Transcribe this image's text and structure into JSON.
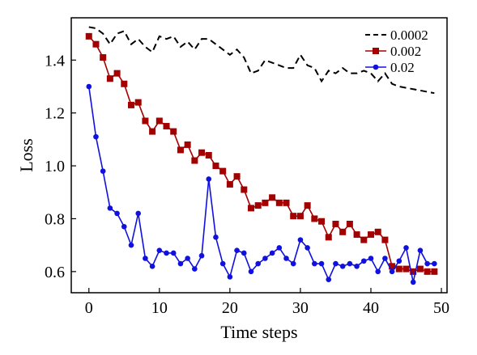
{
  "chart_data": {
    "type": "line",
    "title": "",
    "xlabel": "Time steps",
    "ylabel": "Loss",
    "xlim": [
      -2.5,
      50.8
    ],
    "ylim": [
      0.52,
      1.56
    ],
    "xticks": [
      "0",
      "10",
      "20",
      "30",
      "40",
      "50"
    ],
    "yticks": [
      "0.6",
      "0.8",
      "1.0",
      "1.2",
      "1.4"
    ],
    "legend_position": "top-right",
    "grid": false,
    "x": [
      0,
      1,
      2,
      3,
      4,
      5,
      6,
      7,
      8,
      9,
      10,
      11,
      12,
      13,
      14,
      15,
      16,
      17,
      18,
      19,
      20,
      21,
      22,
      23,
      24,
      25,
      26,
      27,
      28,
      29,
      30,
      31,
      32,
      33,
      34,
      35,
      36,
      37,
      38,
      39,
      40,
      41,
      42,
      43,
      44,
      45,
      46,
      47,
      48,
      49
    ],
    "series": [
      {
        "name": "0.0002",
        "style": "dashed",
        "marker": "none",
        "color": "#000000",
        "values": [
          1.525,
          1.52,
          1.5,
          1.46,
          1.5,
          1.51,
          1.46,
          1.48,
          1.45,
          1.43,
          1.49,
          1.48,
          1.49,
          1.45,
          1.47,
          1.44,
          1.48,
          1.48,
          1.46,
          1.44,
          1.42,
          1.44,
          1.41,
          1.35,
          1.36,
          1.4,
          1.39,
          1.38,
          1.37,
          1.37,
          1.42,
          1.38,
          1.37,
          1.32,
          1.36,
          1.35,
          1.37,
          1.35,
          1.35,
          1.36,
          1.35,
          1.32,
          1.35,
          1.31,
          1.3,
          1.295,
          1.29,
          1.285,
          1.28,
          1.275
        ]
      },
      {
        "name": "0.002",
        "style": "solid",
        "marker": "square",
        "color": "#a30000",
        "values": [
          1.49,
          1.46,
          1.41,
          1.33,
          1.35,
          1.31,
          1.23,
          1.24,
          1.17,
          1.13,
          1.17,
          1.15,
          1.13,
          1.06,
          1.08,
          1.02,
          1.05,
          1.04,
          1.0,
          0.98,
          0.93,
          0.96,
          0.91,
          0.84,
          0.85,
          0.86,
          0.88,
          0.86,
          0.86,
          0.81,
          0.81,
          0.85,
          0.8,
          0.79,
          0.73,
          0.78,
          0.75,
          0.78,
          0.74,
          0.72,
          0.74,
          0.75,
          0.72,
          0.62,
          0.61,
          0.61,
          0.6,
          0.61,
          0.6,
          0.6
        ]
      },
      {
        "name": "0.02",
        "style": "solid",
        "marker": "circle",
        "color": "#1010e0",
        "values": [
          1.3,
          1.11,
          0.98,
          0.84,
          0.82,
          0.77,
          0.7,
          0.82,
          0.65,
          0.62,
          0.68,
          0.67,
          0.67,
          0.63,
          0.65,
          0.61,
          0.66,
          0.95,
          0.73,
          0.63,
          0.58,
          0.68,
          0.67,
          0.6,
          0.63,
          0.65,
          0.67,
          0.69,
          0.65,
          0.63,
          0.72,
          0.69,
          0.63,
          0.63,
          0.57,
          0.63,
          0.62,
          0.63,
          0.62,
          0.64,
          0.65,
          0.6,
          0.65,
          0.6,
          0.64,
          0.69,
          0.56,
          0.68,
          0.63,
          0.63
        ]
      }
    ]
  }
}
